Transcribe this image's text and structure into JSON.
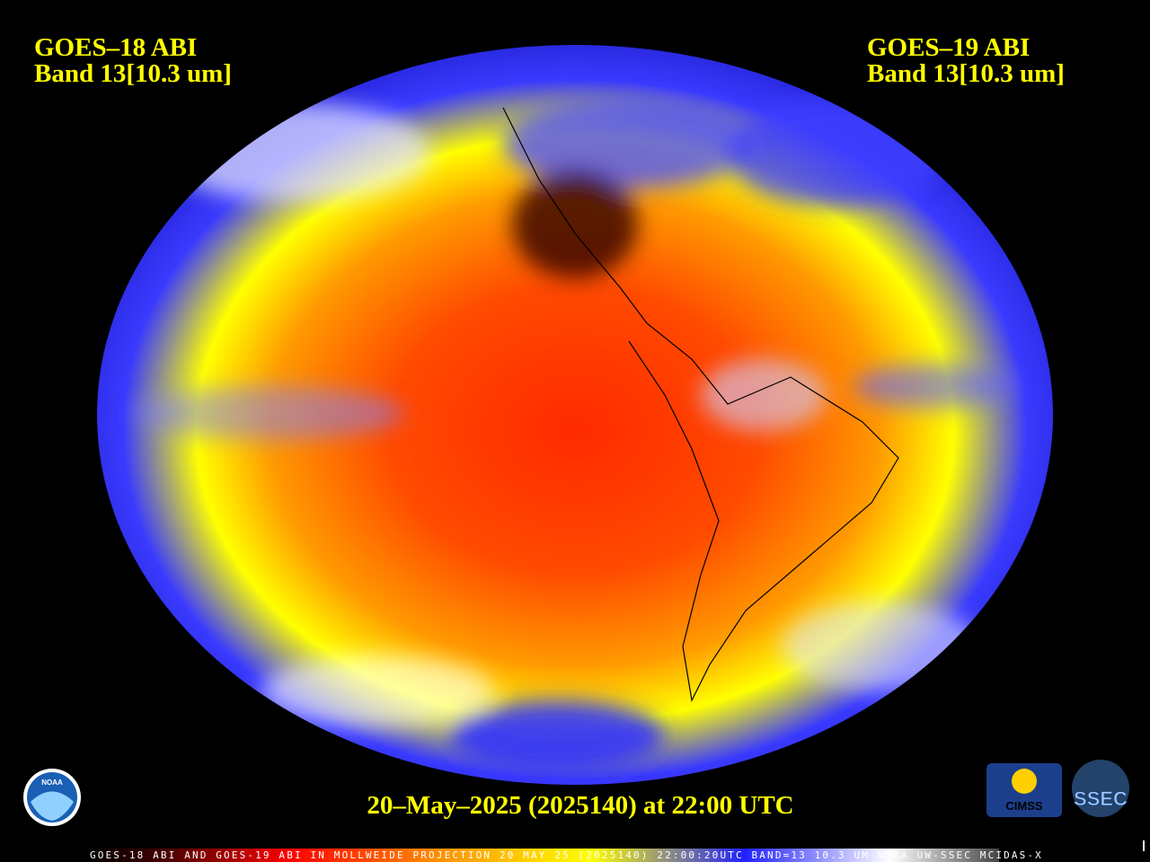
{
  "header": {
    "left": {
      "line1": "GOES–18 ABI",
      "line2": "Band 13[10.3 um]"
    },
    "right": {
      "line1": "GOES–19 ABI",
      "line2": "Band 13[10.3 um]"
    }
  },
  "timestamp": "20–May–2025 (2025140) at 22:00 UTC",
  "footer": "GOES-18 ABI AND GOES-19 ABI IN MOLLWEIDE PROJECTION 20 MAY 25 (2025140) 22:00:20UTC BAND=13 10.3 UM NOAA UW-SSEC MCIDAS-X",
  "logos": {
    "noaa": "NOAA",
    "cimss": "CIMSS",
    "ssec": "SSEC"
  }
}
